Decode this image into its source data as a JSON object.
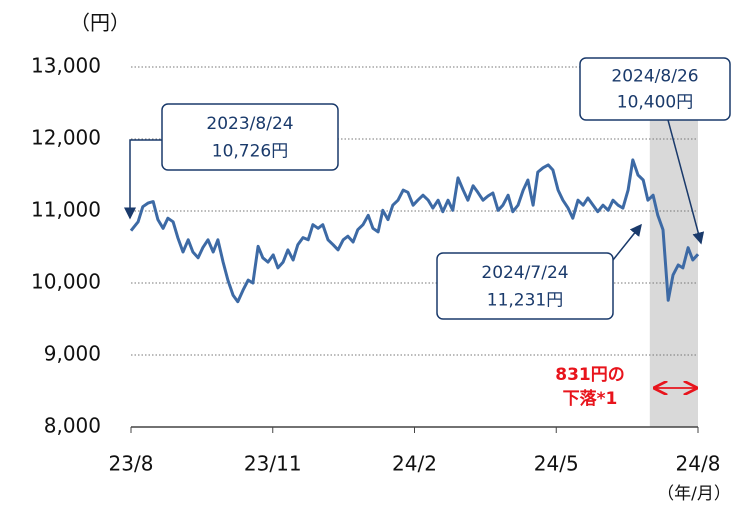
{
  "chart_data": {
    "type": "line",
    "y_unit": "（円）",
    "x_unit": "（年/月）",
    "xlim": [
      0,
      12
    ],
    "xticks": [
      {
        "value": 0,
        "label": "23/8"
      },
      {
        "value": 3,
        "label": "23/11"
      },
      {
        "value": 6,
        "label": "24/2"
      },
      {
        "value": 9,
        "label": "24/5"
      },
      {
        "value": 12,
        "label": "24/8"
      }
    ],
    "ylim": [
      8000,
      13000
    ],
    "yticks": [
      {
        "value": 8000,
        "label": "8,000"
      },
      {
        "value": 9000,
        "label": "9,000"
      },
      {
        "value": 10000,
        "label": "10,000"
      },
      {
        "value": 11000,
        "label": "11,000"
      },
      {
        "value": 12000,
        "label": "12,000"
      },
      {
        "value": 13000,
        "label": "13,000"
      }
    ],
    "grid": true,
    "highlight_range": [
      10.98,
      12
    ],
    "series": [
      {
        "color": "#3d6aa5",
        "x": [
          0,
          0.15,
          0.25,
          0.36,
          0.47,
          0.57,
          0.68,
          0.78,
          0.89,
          0.99,
          1.1,
          1.21,
          1.31,
          1.42,
          1.52,
          1.63,
          1.74,
          1.84,
          1.95,
          2.05,
          2.16,
          2.26,
          2.37,
          2.48,
          2.58,
          2.69,
          2.79,
          2.9,
          3.01,
          3.11,
          3.22,
          3.32,
          3.43,
          3.53,
          3.64,
          3.75,
          3.85,
          3.96,
          4.06,
          4.17,
          4.28,
          4.38,
          4.49,
          4.59,
          4.7,
          4.8,
          4.91,
          5.02,
          5.12,
          5.23,
          5.33,
          5.44,
          5.54,
          5.65,
          5.76,
          5.86,
          5.97,
          6.07,
          6.18,
          6.29,
          6.39,
          6.5,
          6.6,
          6.71,
          6.81,
          6.92,
          7.03,
          7.13,
          7.24,
          7.34,
          7.45,
          7.56,
          7.66,
          7.77,
          7.87,
          7.98,
          8.08,
          8.19,
          8.3,
          8.4,
          8.51,
          8.61,
          8.72,
          8.83,
          8.93,
          9.04,
          9.14,
          9.25,
          9.35,
          9.46,
          9.57,
          9.67,
          9.78,
          9.88,
          9.99,
          10.1,
          10.2,
          10.31,
          10.41,
          10.52,
          10.62,
          10.73,
          10.84,
          10.94,
          11.05,
          11.15,
          11.26,
          11.37,
          11.47,
          11.58,
          11.68,
          11.79,
          11.89,
          12.0
        ],
        "values": [
          10726,
          10850,
          11060,
          11110,
          11130,
          10880,
          10760,
          10900,
          10850,
          10630,
          10430,
          10600,
          10430,
          10350,
          10490,
          10600,
          10430,
          10600,
          10290,
          10040,
          9830,
          9740,
          9900,
          10040,
          10000,
          10510,
          10350,
          10290,
          10390,
          10210,
          10290,
          10460,
          10320,
          10530,
          10630,
          10600,
          10810,
          10760,
          10810,
          10600,
          10530,
          10460,
          10600,
          10650,
          10570,
          10740,
          10810,
          10940,
          10760,
          10710,
          11010,
          10880,
          11080,
          11150,
          11290,
          11260,
          11080,
          11150,
          11220,
          11150,
          11040,
          11150,
          10990,
          11150,
          11010,
          11460,
          11290,
          11150,
          11350,
          11260,
          11150,
          11210,
          11250,
          11010,
          11080,
          11220,
          10990,
          11080,
          11290,
          11430,
          11080,
          11540,
          11600,
          11640,
          11570,
          11290,
          11150,
          11040,
          10900,
          11150,
          11080,
          11180,
          11080,
          10990,
          11080,
          11010,
          11150,
          11080,
          11040,
          11290,
          11710,
          11500,
          11430,
          11150,
          11220,
          10940,
          10740,
          9760,
          10110,
          10250,
          10210,
          10490,
          10320,
          10400
        ]
      }
    ],
    "annotations": [
      {
        "date": "2023/8/24",
        "price": "10,726円"
      },
      {
        "date": "2024/7/24",
        "price": "11,231円"
      },
      {
        "date": "2024/8/26",
        "price": "10,400円"
      }
    ],
    "drop_label": [
      "831円の",
      "下落*1"
    ]
  }
}
